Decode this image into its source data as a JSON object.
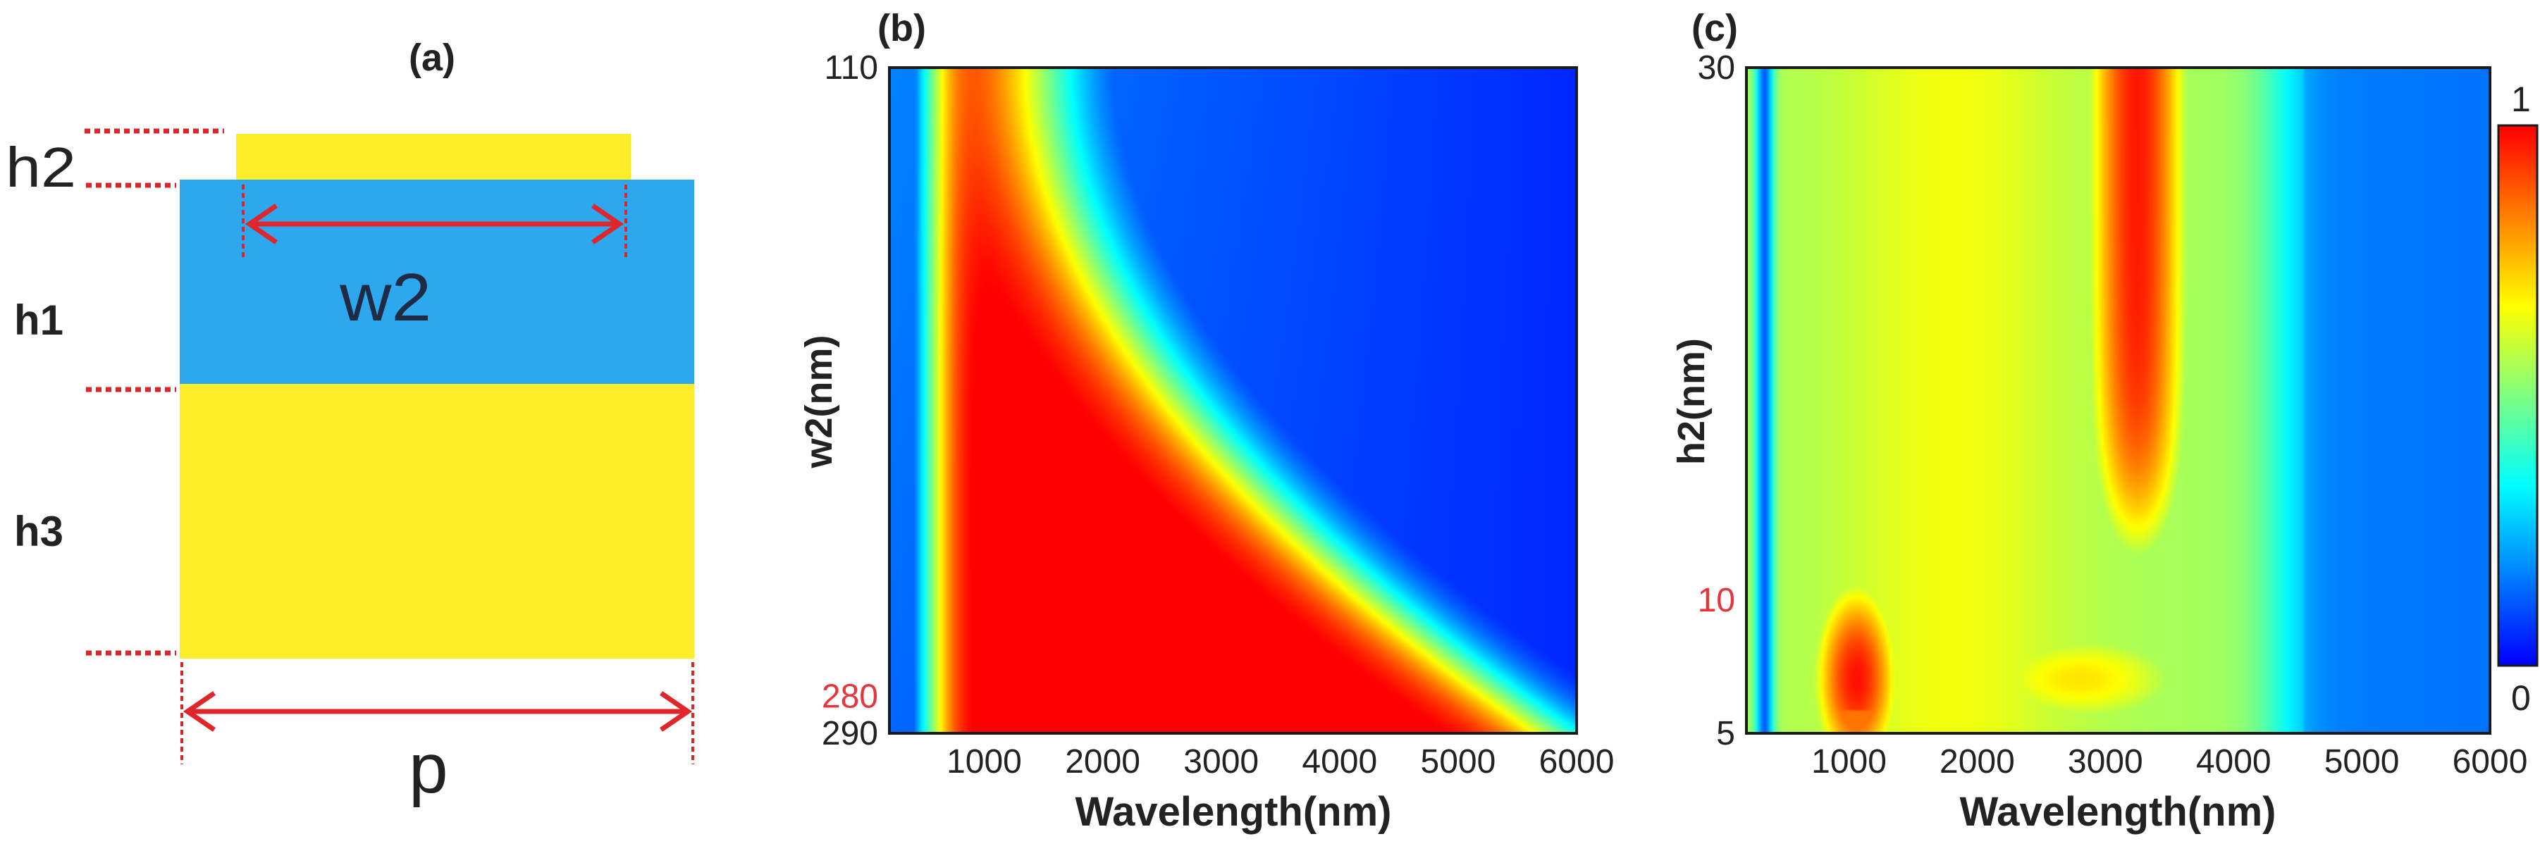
{
  "colors": {
    "gold": "#fcec29",
    "blue": "#2da8ef",
    "marker_red": "#e0262b",
    "dotted_red": "#d8262b",
    "text": "#222222",
    "red_tick": "#e8353b",
    "frame": "#1a1a1a",
    "colormap": [
      "#0000ff",
      "#0080ff",
      "#00ffff",
      "#80ff80",
      "#ffff00",
      "#ff8000",
      "#ff0000"
    ]
  },
  "panel_a": {
    "label": "(a)",
    "labels": {
      "h2": "h2",
      "h1": "h1",
      "h3": "h3",
      "w2": "w2",
      "p": "p"
    }
  },
  "chart_data": [
    {
      "id": "b",
      "type": "heatmap",
      "panel_label": "(b)",
      "title": "",
      "xlabel": "Wavelength(nm)",
      "ylabel": "w2(nm)",
      "xlim": [
        200,
        6000
      ],
      "ylim": [
        110,
        290
      ],
      "y_direction": "110 at top, 290 at bottom",
      "x_ticks": [
        1000,
        2000,
        3000,
        4000,
        5000,
        6000
      ],
      "y_ticks": [
        {
          "value": 110,
          "label": "110",
          "color": "#222222"
        },
        {
          "value": 280,
          "label": "280",
          "color": "#e8353b"
        },
        {
          "value": 290,
          "label": "290",
          "color": "#222222"
        }
      ],
      "colorbar": false,
      "description_of_values": "Absorption map: near-zero dip near 330 nm, strong absorption (~1) from ~700 nm up to a cutoff wavelength that rises from ~1500 nm at w2=110 to ~5800 nm at w2=290, decaying to ~0 at long wavelengths."
    },
    {
      "id": "c",
      "type": "heatmap",
      "panel_label": "(c)",
      "title": "",
      "xlabel": "Wavelength(nm)",
      "ylabel": "h2(nm)",
      "xlim": [
        200,
        6000
      ],
      "ylim": [
        5,
        30
      ],
      "x_ticks": [
        1000,
        2000,
        3000,
        4000,
        5000,
        6000
      ],
      "y_ticks": [
        {
          "value": 30,
          "label": "30",
          "color": "#222222"
        },
        {
          "value": 10,
          "label": "10",
          "color": "#e8353b"
        },
        {
          "value": 5,
          "label": "5",
          "color": "#222222"
        }
      ],
      "colorbar": true,
      "colorbar_range": [
        0,
        1
      ],
      "colorbar_labels": {
        "top": "1",
        "bottom": "0"
      },
      "description_of_values": "Absorption map: dip near 330 nm; hot spot near 1000 nm at h2 5-12 nm; broad red band at 2800-3700 nm across h2 12-30 nm; sharp drop near 4300 nm, ~0.2 at 6000 nm."
    }
  ]
}
